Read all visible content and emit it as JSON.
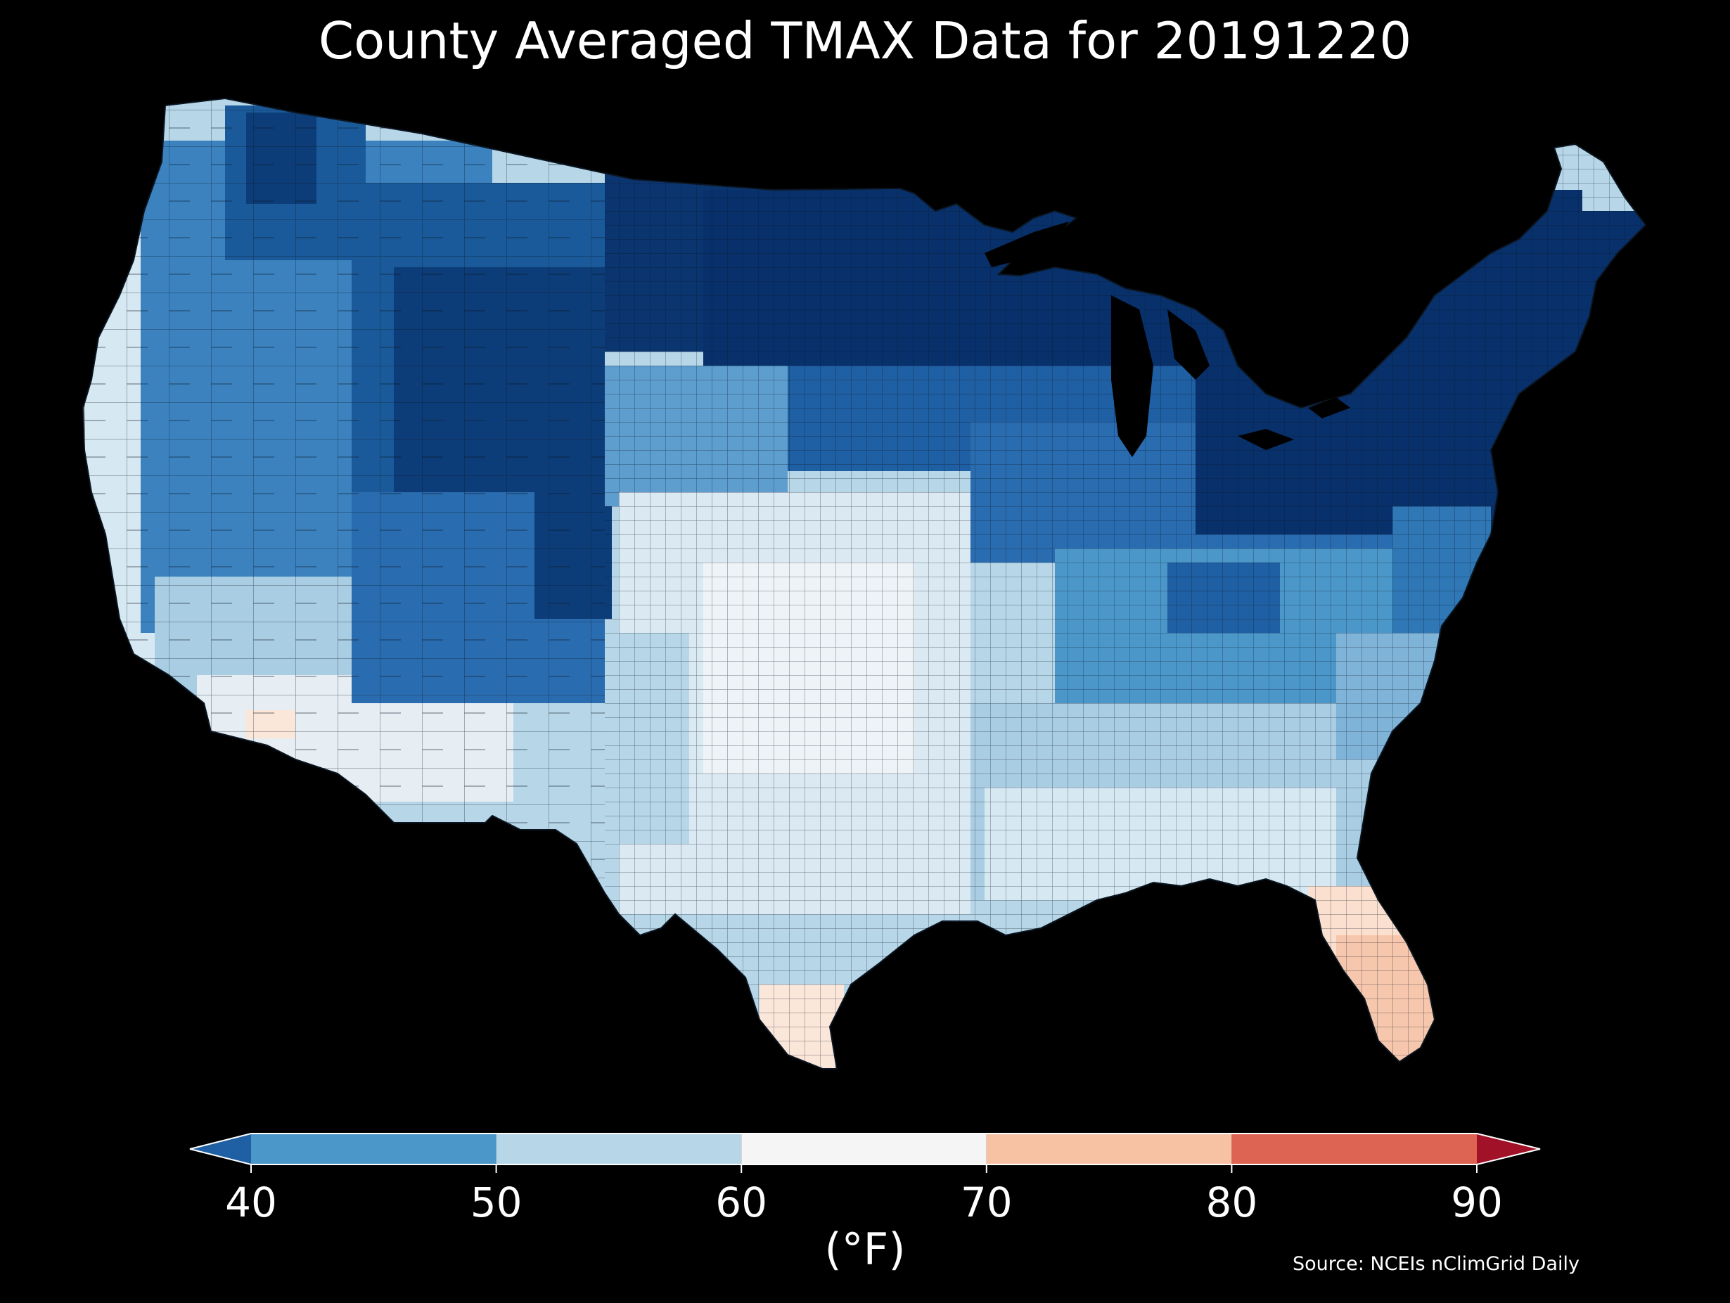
{
  "title": "County Averaged TMAX Data for 20191220",
  "colorbar": {
    "units_label": "(°F)",
    "ticks": [
      "40",
      "50",
      "60",
      "70",
      "80",
      "90"
    ],
    "bins": [
      {
        "range": "<40",
        "color": "#1f5fa3"
      },
      {
        "range": "40-50",
        "color": "#4b97c9"
      },
      {
        "range": "50-60",
        "color": "#b7d7e8"
      },
      {
        "range": "60-70",
        "color": "#f5f5f5"
      },
      {
        "range": "70-80",
        "color": "#f7c1a4"
      },
      {
        "range": "80-90",
        "color": "#dd6452"
      },
      {
        "range": ">90",
        "color": "#a11228"
      }
    ]
  },
  "source": "Source: NCEIs nClimGrid Daily",
  "map_colors": {
    "deep_blue": "#08306b",
    "dark_blue": "#1b5a9a",
    "mid_blue": "#3b82bf",
    "light_blue": "#6fa8d3",
    "pale_blue": "#b7d7e8",
    "very_pale": "#dbe9f3",
    "near_white": "#f1f4f7",
    "pale_orange": "#fbe0cf",
    "orange": "#f7c7ad"
  }
}
